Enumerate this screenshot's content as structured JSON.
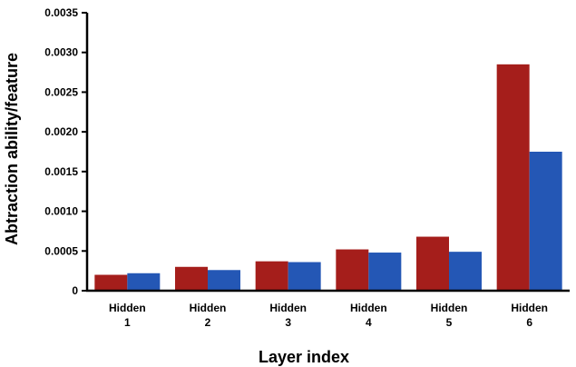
{
  "chart_data": {
    "type": "bar",
    "categories": [
      [
        "Hidden",
        "1"
      ],
      [
        "Hidden",
        "2"
      ],
      [
        "Hidden",
        "3"
      ],
      [
        "Hidden",
        "4"
      ],
      [
        "Hidden",
        "5"
      ],
      [
        "Hidden",
        "6"
      ]
    ],
    "series": [
      {
        "values": [
          0.0002,
          0.0003,
          0.00037,
          0.00052,
          0.00068,
          0.00285
        ],
        "color": "#a51e1b"
      },
      {
        "values": [
          0.00022,
          0.00026,
          0.00036,
          0.00048,
          0.00049,
          0.00175
        ],
        "color": "#2457b5"
      }
    ],
    "title": "",
    "xlabel": "Layer index",
    "ylabel": "Abtraction ability/feature",
    "ylim": [
      0,
      0.0035
    ],
    "yticks": [
      "0",
      "0.0005",
      "0.0010",
      "0.0015",
      "0.0020",
      "0.0025",
      "0.0030",
      "0.0035"
    ],
    "grid": false,
    "legend": "none"
  }
}
